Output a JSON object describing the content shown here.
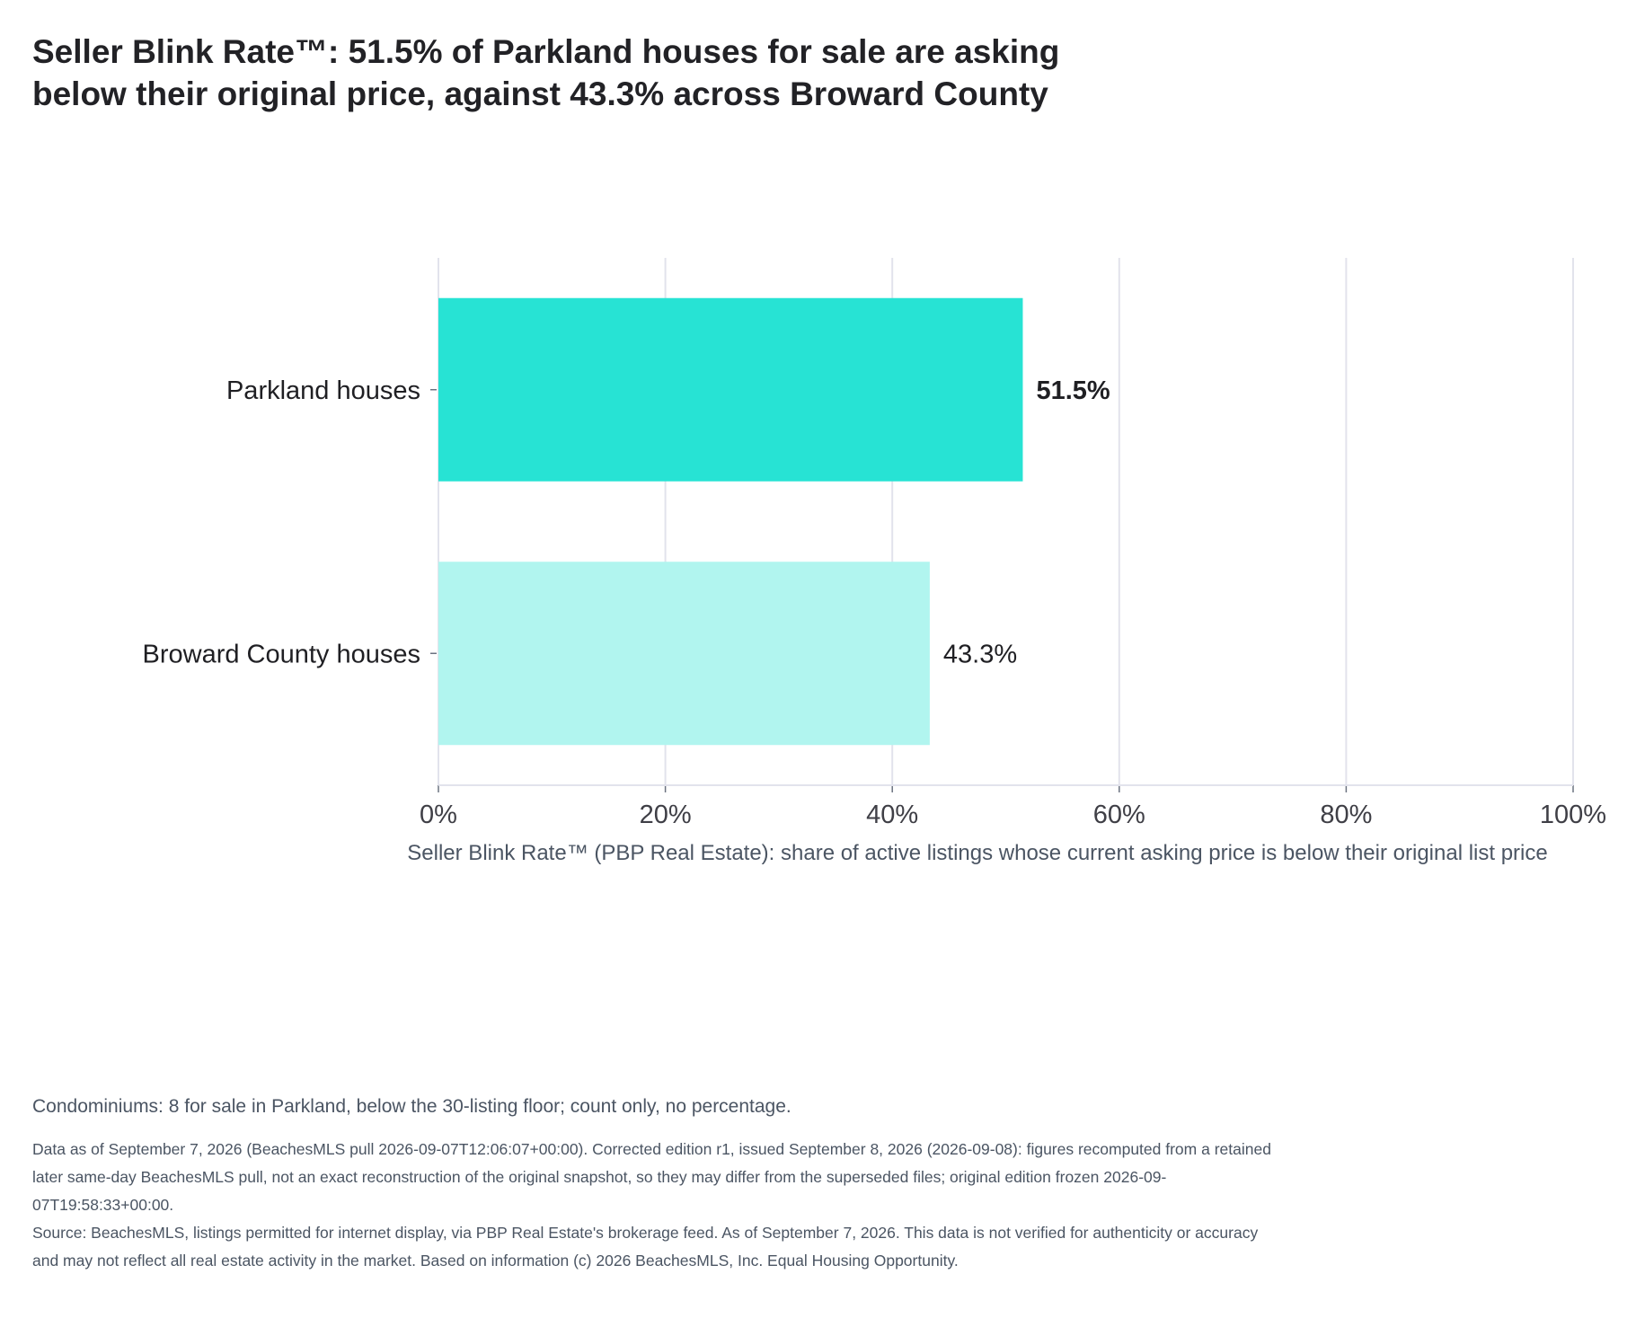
{
  "title_lines": [
    "Seller Blink Rate™: 51.5% of Parkland houses for sale are asking",
    "below their original price, against 43.3% across Broward County"
  ],
  "colors": {
    "primary_bar": "#27e3d4",
    "secondary_bar": "#b1f5ef",
    "grid": "#e2e3ec",
    "text": "#1f1f23",
    "muted": "#4b5563"
  },
  "chart_data": {
    "type": "bar",
    "orientation": "horizontal",
    "categories": [
      "Parkland houses",
      "Broward County houses"
    ],
    "values": [
      51.5,
      43.3
    ],
    "value_labels": [
      "51.5%",
      "43.3%"
    ],
    "bar_colors": [
      "#27e3d4",
      "#b1f5ef"
    ],
    "xlim": [
      0,
      100
    ],
    "x_ticks": [
      0,
      20,
      40,
      60,
      80,
      100
    ],
    "x_tick_labels": [
      "0%",
      "20%",
      "40%",
      "60%",
      "80%",
      "100%"
    ],
    "xlabel": "Seller Blink Rate™ (PBP Real Estate): share of active listings whose current asking price is below their original list price",
    "grid": true
  },
  "note": "Condominiums: 8 for sale in Parkland, below the 30-listing floor; count only, no percentage.",
  "footnotes": [
    "Data as of September 7, 2026 (BeachesMLS pull 2026-09-07T12:06:07+00:00). Corrected edition r1, issued September 8, 2026 (2026-09-08): figures recomputed from a retained later same-day BeachesMLS pull, not an exact reconstruction of the original snapshot, so they may differ from the superseded files; original edition frozen 2026-09-07T19:58:33+00:00.",
    "Source: BeachesMLS, listings permitted for internet display, via PBP Real Estate's brokerage feed. As of September 7, 2026. This data is not verified for authenticity or accuracy and may not reflect all real estate activity in the market. Based on information (c) 2026 BeachesMLS, Inc. Equal Housing Opportunity."
  ]
}
